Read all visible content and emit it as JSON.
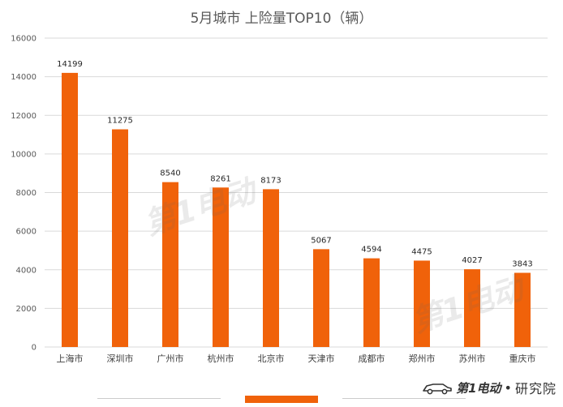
{
  "chart_data": {
    "type": "bar",
    "title": "5月城市 上险量TOP10（辆）",
    "categories": [
      "上海市",
      "深圳市",
      "广州市",
      "杭州市",
      "北京市",
      "天津市",
      "成都市",
      "郑州市",
      "苏州市",
      "重庆市"
    ],
    "values": [
      14199,
      11275,
      8540,
      8261,
      8173,
      5067,
      4594,
      4475,
      4027,
      3843
    ],
    "ylim": [
      0,
      16000
    ],
    "yticks": [
      0,
      2000,
      4000,
      6000,
      8000,
      10000,
      12000,
      14000,
      16000
    ],
    "xlabel": "",
    "ylabel": "",
    "grid": true,
    "bar_color": "#f0620a"
  },
  "branding": {
    "logo_text": "第1电动",
    "separator": "•",
    "subtitle": "研究院",
    "watermark_text": "第1电动"
  }
}
